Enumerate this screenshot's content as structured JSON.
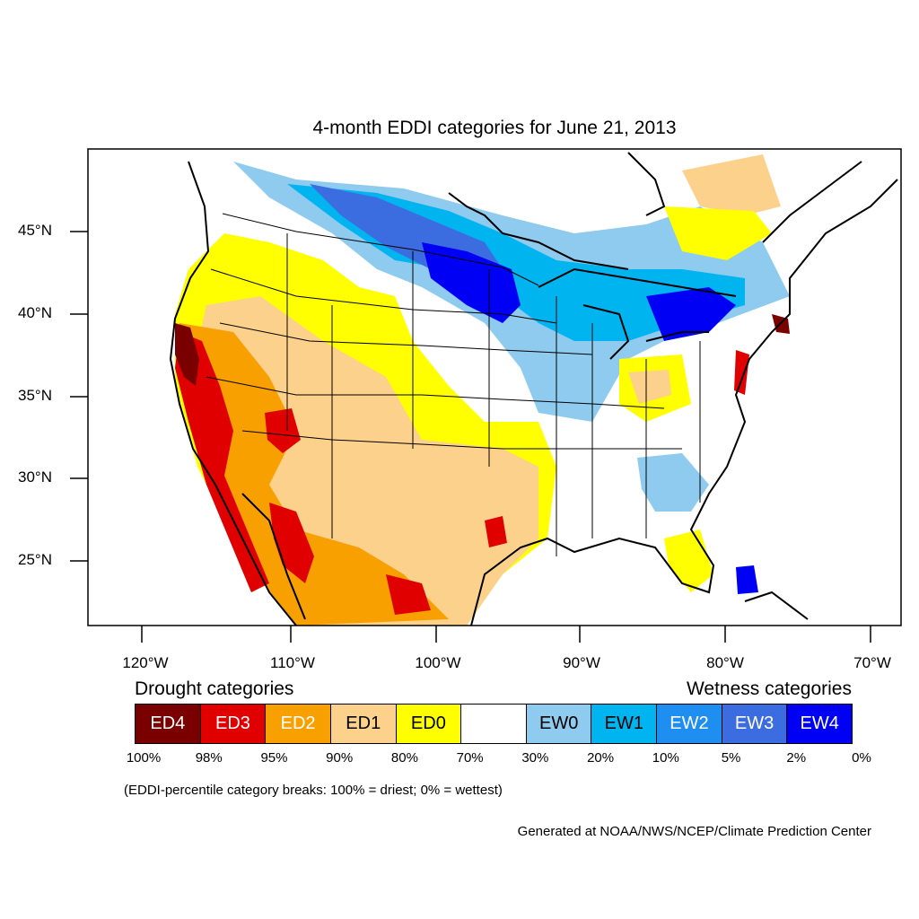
{
  "title": "4-month EDDI categories for June 21, 2013",
  "axes": {
    "lat_labels": [
      "45°N",
      "40°N",
      "35°N",
      "30°N",
      "25°N"
    ],
    "lon_labels": [
      "120°W",
      "110°W",
      "100°W",
      "90°W",
      "80°W",
      "70°W"
    ]
  },
  "legend": {
    "drought_heading": "Drought categories",
    "wetness_heading": "Wetness categories",
    "categories": [
      {
        "label": "ED4",
        "color": "#7a0000",
        "text_color": "#ffffff"
      },
      {
        "label": "ED3",
        "color": "#e00000",
        "text_color": "#ffffff"
      },
      {
        "label": "ED2",
        "color": "#f7a000",
        "text_color": "#ffffff"
      },
      {
        "label": "ED1",
        "color": "#fcd18b",
        "text_color": "#000000"
      },
      {
        "label": "ED0",
        "color": "#ffff00",
        "text_color": "#000000"
      },
      {
        "label": "",
        "color": "#ffffff",
        "text_color": "#000000"
      },
      {
        "label": "EW0",
        "color": "#8ecbee",
        "text_color": "#000000"
      },
      {
        "label": "EW1",
        "color": "#00b4f0",
        "text_color": "#000000"
      },
      {
        "label": "EW2",
        "color": "#1e8ef0",
        "text_color": "#ffffff"
      },
      {
        "label": "EW3",
        "color": "#3c6de0",
        "text_color": "#ffffff"
      },
      {
        "label": "EW4",
        "color": "#0000f5",
        "text_color": "#ffffff"
      }
    ],
    "breaks": [
      "100%",
      "98%",
      "95%",
      "90%",
      "80%",
      "70%",
      "30%",
      "20%",
      "10%",
      "5%",
      "2%",
      "0%"
    ],
    "note": "(EDDI-percentile category breaks: 100% = driest; 0% = wettest)"
  },
  "credit": "Generated at NOAA/NWS/NCEP/Climate Prediction Center"
}
